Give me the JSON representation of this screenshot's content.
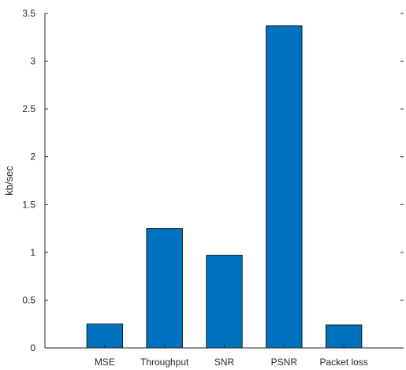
{
  "chart_data": {
    "type": "bar",
    "categories": [
      "MSE",
      "Throughput",
      "SNR",
      "PSNR",
      "Packet loss"
    ],
    "values": [
      0.25,
      1.25,
      0.97,
      3.37,
      0.24
    ],
    "title": "",
    "xlabel": "",
    "ylabel": "kb/sec",
    "ylim": [
      0,
      3.5
    ],
    "xlim": [
      0,
      6
    ],
    "yticks": [
      "0",
      "0.5",
      "1",
      "1.5",
      "2",
      "2.5",
      "3",
      "3.5"
    ],
    "grid": false,
    "legend": "none",
    "bar_color": "#0072BD",
    "bar_edge_color": "#000000"
  }
}
